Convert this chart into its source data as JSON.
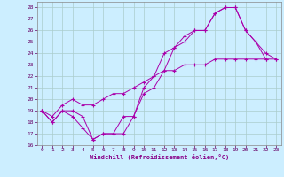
{
  "xlabel": "Windchill (Refroidissement éolien,°C)",
  "bg_color": "#cceeff",
  "line_color": "#aa00aa",
  "grid_color": "#aacccc",
  "ylim": [
    16,
    28.5
  ],
  "xlim": [
    -0.5,
    23.5
  ],
  "yticks": [
    16,
    17,
    18,
    19,
    20,
    21,
    22,
    23,
    24,
    25,
    26,
    27,
    28
  ],
  "xticks": [
    0,
    1,
    2,
    3,
    4,
    5,
    6,
    7,
    8,
    9,
    10,
    11,
    12,
    13,
    14,
    15,
    16,
    17,
    18,
    19,
    20,
    21,
    22,
    23
  ],
  "line1_x": [
    0,
    1,
    2,
    3,
    4,
    5,
    6,
    7,
    8,
    9,
    10,
    11,
    12,
    13,
    14,
    15,
    16,
    17,
    18,
    19,
    20,
    21,
    22
  ],
  "line1_y": [
    19.0,
    18.0,
    19.0,
    18.5,
    17.5,
    16.5,
    17.0,
    17.0,
    18.5,
    18.5,
    21.0,
    22.0,
    24.0,
    24.5,
    25.5,
    26.0,
    26.0,
    27.5,
    28.0,
    28.0,
    26.0,
    25.0,
    23.5
  ],
  "line2_x": [
    0,
    1,
    2,
    3,
    4,
    5,
    6,
    7,
    8,
    9,
    10,
    11,
    12,
    13,
    14,
    15,
    16,
    17,
    18,
    19,
    20,
    21,
    22,
    23
  ],
  "line2_y": [
    19.0,
    18.0,
    19.0,
    19.0,
    18.5,
    16.5,
    17.0,
    17.0,
    17.0,
    18.5,
    20.5,
    21.0,
    22.5,
    24.5,
    25.0,
    26.0,
    26.0,
    27.5,
    28.0,
    28.0,
    26.0,
    25.0,
    24.0,
    23.5
  ],
  "line3_x": [
    0,
    1,
    2,
    3,
    4,
    5,
    6,
    7,
    8,
    9,
    10,
    11,
    12,
    13,
    14,
    15,
    16,
    17,
    18,
    19,
    20,
    21,
    22,
    23
  ],
  "line3_y": [
    19.0,
    18.5,
    19.5,
    20.0,
    19.5,
    19.5,
    20.0,
    20.5,
    20.5,
    21.0,
    21.5,
    22.0,
    22.5,
    22.5,
    23.0,
    23.0,
    23.0,
    23.5,
    23.5,
    23.5,
    23.5,
    23.5,
    23.5,
    23.5
  ],
  "figwidth": 3.2,
  "figheight": 2.0,
  "dpi": 100
}
